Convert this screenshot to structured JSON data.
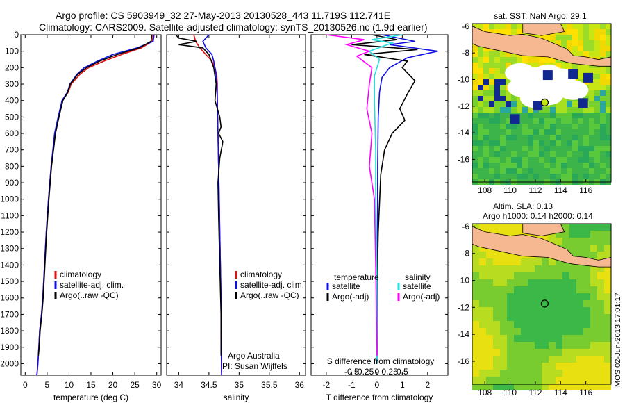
{
  "header": {
    "line1": "Argo profile: CS 5903949_32 27-May-2013 20130528_443 11.719S 112.741E",
    "line2": "Climatology: CARS2009. Satellite-adjusted climatology: synTS_20130526.nc (1.9d earlier)"
  },
  "colors": {
    "climatology": "#e01010",
    "satellite": "#1010e0",
    "argo": "#000000",
    "salinity_sat": "#20e0e0",
    "salinity_argo": "#ff00ff"
  },
  "chart_data": [
    {
      "id": "temperature",
      "type": "line",
      "xlabel": "temperature (deg C)",
      "ylabel": "",
      "xlim": [
        -1,
        31
      ],
      "xticks": [
        0,
        5,
        10,
        15,
        20,
        25,
        30
      ],
      "ylim": [
        2070,
        0
      ],
      "yticks": [
        0,
        100,
        200,
        300,
        400,
        500,
        600,
        700,
        800,
        900,
        1000,
        1100,
        1200,
        1300,
        1400,
        1500,
        1600,
        1700,
        1800,
        1900,
        2000
      ],
      "legend": [
        "climatology",
        "satellite-adj. clim.",
        "Argo(..raw -QC)"
      ],
      "series": [
        {
          "name": "climatology",
          "color": "#e01010",
          "x": [
            29.2,
            29.0,
            26.5,
            22.0,
            18.0,
            14.5,
            12.5,
            10.5,
            9.8,
            8.5,
            7.6,
            6.8,
            5.9,
            5.3,
            4.8,
            4.4,
            4.0,
            3.7,
            3.3,
            3.1,
            2.9,
            2.7,
            2.6
          ],
          "y": [
            0,
            40,
            80,
            120,
            160,
            200,
            240,
            300,
            350,
            400,
            500,
            600,
            800,
            1000,
            1200,
            1400,
            1600,
            1700,
            1800,
            1900,
            2000,
            2060,
            2070
          ]
        },
        {
          "name": "satellite-adj. clim.",
          "color": "#1010e0",
          "x": [
            29.4,
            29.2,
            25.5,
            20.0,
            16.5,
            13.5,
            11.8,
            10.2,
            9.6,
            8.4,
            7.5,
            6.7,
            5.9,
            5.3,
            4.8,
            4.4,
            4.0,
            3.7,
            3.3,
            3.1,
            2.9,
            2.7,
            2.6
          ],
          "y": [
            0,
            40,
            80,
            120,
            160,
            200,
            240,
            300,
            350,
            400,
            500,
            600,
            800,
            1000,
            1200,
            1400,
            1600,
            1700,
            1800,
            1900,
            2000,
            2060,
            2070
          ]
        },
        {
          "name": "Argo(..raw -QC)",
          "color": "#000000",
          "x": [
            28.9,
            28.7,
            26.0,
            21.0,
            17.0,
            14.0,
            12.0,
            10.3,
            9.7,
            8.6,
            7.7,
            6.9,
            6.0,
            5.4,
            4.9,
            4.5,
            4.1,
            3.8,
            3.4,
            3.2,
            3.0
          ],
          "y": [
            0,
            40,
            80,
            120,
            160,
            200,
            240,
            300,
            350,
            400,
            500,
            600,
            800,
            1000,
            1200,
            1400,
            1600,
            1700,
            1800,
            1900,
            1950
          ]
        }
      ]
    },
    {
      "id": "salinity",
      "type": "line",
      "xlabel": "salinity",
      "xlim": [
        33.8,
        36.1
      ],
      "xticks": [
        34,
        34.5,
        35,
        35.5,
        36
      ],
      "ylim": [
        2070,
        0
      ],
      "legend": [
        "climatology",
        "satellite-adj. clim.",
        "Argo(..raw -QC)"
      ],
      "annotation": [
        "Argo Australia",
        "PI: Susan Wijffels"
      ],
      "series": [
        {
          "name": "climatology",
          "color": "#e01010",
          "x": [
            34.25,
            34.28,
            34.35,
            34.45,
            34.55,
            34.6,
            34.63,
            34.64,
            34.64,
            34.65,
            34.66,
            34.67,
            34.68,
            34.69,
            34.7,
            34.7,
            34.71
          ],
          "y": [
            0,
            40,
            80,
            120,
            160,
            200,
            250,
            300,
            400,
            600,
            800,
            1000,
            1200,
            1400,
            1600,
            1800,
            2070
          ]
        },
        {
          "name": "satellite-adj. clim.",
          "color": "#1010e0",
          "x": [
            34.5,
            34.4,
            34.45,
            34.55,
            34.58,
            34.6,
            34.62,
            34.63,
            34.64,
            34.65,
            34.66,
            34.67,
            34.68,
            34.69,
            34.7,
            34.7,
            34.71
          ],
          "y": [
            0,
            40,
            80,
            120,
            160,
            200,
            250,
            300,
            400,
            600,
            800,
            1000,
            1200,
            1400,
            1600,
            1800,
            2070
          ]
        },
        {
          "name": "Argo(..raw -QC)",
          "color": "#000000",
          "x": [
            33.95,
            34.0,
            34.3,
            34.0,
            34.4,
            34.5,
            34.58,
            34.62,
            34.6,
            34.68,
            34.7,
            34.66,
            34.73,
            34.68,
            34.65,
            34.66,
            34.68,
            34.7,
            34.7
          ],
          "y": [
            0,
            20,
            40,
            60,
            80,
            120,
            200,
            300,
            400,
            500,
            560,
            600,
            650,
            750,
            900,
            1100,
            1400,
            1700,
            1950
          ]
        }
      ]
    },
    {
      "id": "difference",
      "type": "line",
      "xlabel": "T difference from climatology",
      "toplabel": "S difference from climatology",
      "xlim": [
        -2.6,
        2.8
      ],
      "xticks": [
        -2,
        -1,
        0,
        1,
        2
      ],
      "sticks": [
        "-0.5",
        "-0.25",
        "0",
        "0.25",
        "0.5"
      ],
      "ylim": [
        2070,
        0
      ],
      "legend": {
        "temperature_heading": "temperature",
        "salinity_heading": "salinity",
        "t_sat": "satellite",
        "t_argo": "Argo(-adj)",
        "s_sat": "satellite",
        "s_argo": "Argo(-adj)"
      },
      "series": [
        {
          "name": "T satellite",
          "color": "#1010e0",
          "x": [
            0.2,
            1.5,
            0.5,
            2.4,
            1.2,
            0.5,
            0.2,
            0.1,
            0.05,
            0.03,
            0.02,
            0.0
          ],
          "y": [
            0,
            40,
            60,
            100,
            140,
            200,
            260,
            350,
            500,
            800,
            1200,
            2000
          ]
        },
        {
          "name": "T Argo(-adj)",
          "color": "#000000",
          "x": [
            -0.2,
            0.8,
            -1.0,
            1.6,
            -0.5,
            1.2,
            1.0,
            1.5,
            1.2,
            0.9,
            1.1,
            0.6,
            0.3,
            0.15,
            0.05,
            0.0,
            0.0
          ],
          "y": [
            0,
            30,
            60,
            90,
            120,
            160,
            200,
            280,
            360,
            450,
            520,
            600,
            700,
            850,
            1200,
            1600,
            1950
          ]
        },
        {
          "name": "S satellite",
          "color": "#20e0e0",
          "x": [
            1.0,
            -0.2,
            0.6,
            -0.3,
            0.1,
            -0.1,
            -0.1,
            -0.05,
            -0.05,
            0.0,
            0.0
          ],
          "y": [
            0,
            30,
            50,
            100,
            150,
            250,
            400,
            700,
            1000,
            1500,
            2000
          ]
        },
        {
          "name": "S Argo(-adj)",
          "color": "#ff00ff",
          "x": [
            -2.0,
            -0.5,
            -1.2,
            -0.3,
            -0.8,
            -0.2,
            -0.3,
            -0.4,
            -0.2,
            -0.3,
            -0.1,
            -0.05,
            0.0
          ],
          "y": [
            0,
            30,
            60,
            100,
            130,
            200,
            300,
            450,
            600,
            800,
            1000,
            1400,
            1950
          ]
        }
      ]
    }
  ],
  "maps": {
    "sst": {
      "title": "sat. SST: NaN Argo: 29.1",
      "xticks": [
        108,
        110,
        112,
        114,
        116
      ],
      "yticks": [
        -6,
        -8,
        -10,
        -12,
        -14,
        -16
      ],
      "xlim": [
        107,
        118
      ],
      "ylim": [
        -17.7,
        -5.8
      ],
      "float": {
        "lon": 112.741,
        "lat": -11.719
      }
    },
    "sla": {
      "title1": "Altim. SLA: 0.13",
      "title2": "Argo h1000: 0.14 h2000: 0.14",
      "xticks": [
        108,
        110,
        112,
        114,
        116
      ],
      "yticks": [
        -6,
        -8,
        -10,
        -12,
        -14,
        -16
      ],
      "xlim": [
        107,
        118
      ],
      "ylim": [
        -17.7,
        -5.8
      ],
      "float": {
        "lon": 112.741,
        "lat": -11.719
      }
    }
  },
  "footer_stamp": "IMOS 02-Jun-2013 17:01:17"
}
